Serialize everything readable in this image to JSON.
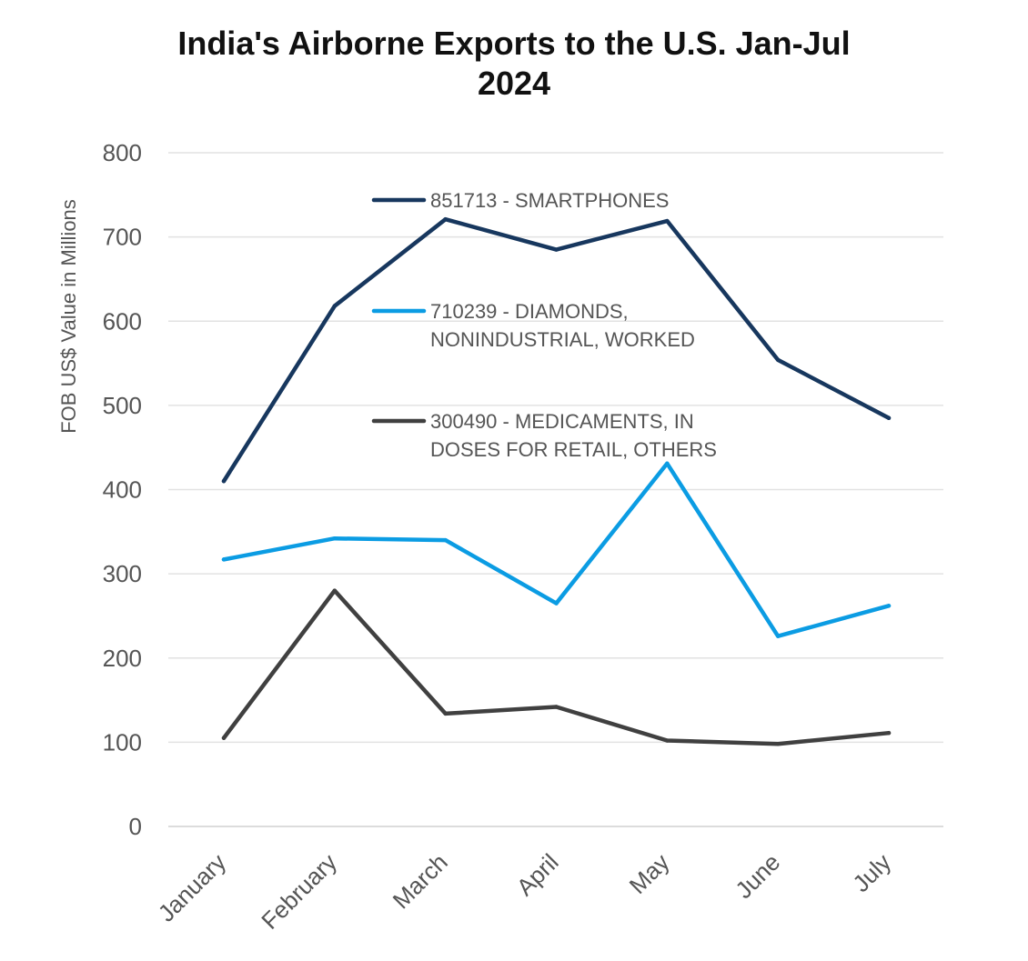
{
  "chart_data": {
    "type": "line",
    "title_lines": [
      "India's Airborne Exports to the U.S. Jan-Jul",
      "2024"
    ],
    "ylabel": "FOB US$ Value in Millions",
    "xlabel": "",
    "ylim": [
      0,
      800
    ],
    "yticks": [
      0,
      100,
      200,
      300,
      400,
      500,
      600,
      700,
      800
    ],
    "categories": [
      "January",
      "February",
      "March",
      "April",
      "May",
      "June",
      "July"
    ],
    "grid": true,
    "legend_position": "inside-top-center",
    "series": [
      {
        "name_lines": [
          "851713 - SMARTPHONES"
        ],
        "color": "#17375e",
        "values": [
          410,
          618,
          721,
          685,
          719,
          554,
          485
        ]
      },
      {
        "name_lines": [
          "710239 - DIAMONDS,",
          "NONINDUSTRIAL, WORKED"
        ],
        "color": "#0b9ce3",
        "values": [
          317,
          342,
          340,
          265,
          431,
          226,
          262
        ]
      },
      {
        "name_lines": [
          "300490 - MEDICAMENTS, IN",
          "DOSES FOR RETAIL, OTHERS"
        ],
        "color": "#404040",
        "values": [
          105,
          280,
          134,
          142,
          102,
          98,
          111
        ]
      }
    ]
  }
}
